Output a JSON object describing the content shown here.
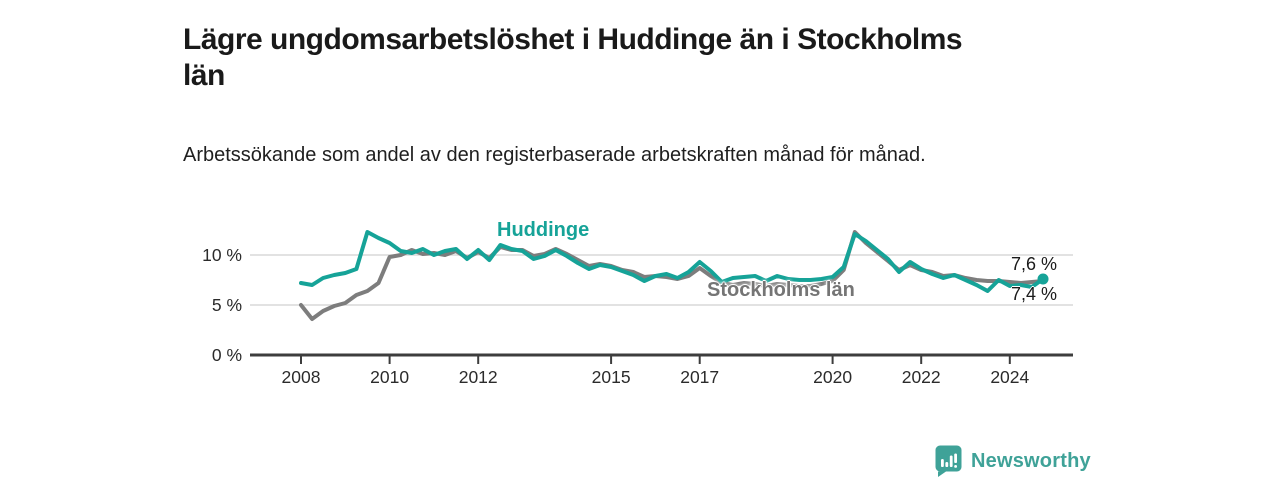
{
  "header": {
    "title": "Lägre ungdomsarbetslöshet i Huddinge än i Stockholms län",
    "subtitle": "Arbetssökande som andel av den registerbaserade arbetskraften månad för månad."
  },
  "chart_data": {
    "type": "line",
    "title": "Lägre ungdomsarbetslöshet i Huddinge än i Stockholms län",
    "xlabel": "",
    "ylabel": "",
    "unit": "%",
    "ylim": [
      0,
      13
    ],
    "xlim": [
      2006.85,
      2025.4
    ],
    "grid": "horizontal",
    "legend_position": "inline-labels-on-lines",
    "resolution": "quarterly-approximation-of-monthly",
    "x": [
      2008,
      2008.25,
      2008.5,
      2008.75,
      2009,
      2009.25,
      2009.5,
      2009.75,
      2010,
      2010.25,
      2010.5,
      2010.75,
      2011,
      2011.25,
      2011.5,
      2011.75,
      2012,
      2012.25,
      2012.5,
      2012.75,
      2013,
      2013.25,
      2013.5,
      2013.75,
      2014,
      2014.25,
      2014.5,
      2014.75,
      2015,
      2015.25,
      2015.5,
      2015.75,
      2016,
      2016.25,
      2016.5,
      2016.75,
      2017,
      2017.25,
      2017.5,
      2017.75,
      2018,
      2018.25,
      2018.5,
      2018.75,
      2019,
      2019.25,
      2019.5,
      2019.75,
      2020,
      2020.25,
      2020.5,
      2020.75,
      2021,
      2021.25,
      2021.5,
      2021.75,
      2022,
      2022.25,
      2022.5,
      2022.75,
      2023,
      2023.25,
      2023.5,
      2023.75,
      2024,
      2024.25,
      2024.5,
      2024.75
    ],
    "series": [
      {
        "name": "Huddinge",
        "color": "#16a398",
        "end_value_label": "7,6 %",
        "values": [
          7.2,
          7.0,
          7.7,
          8.0,
          8.2,
          8.6,
          12.3,
          11.7,
          11.2,
          10.4,
          10.2,
          10.6,
          10.0,
          10.4,
          10.6,
          9.6,
          10.5,
          9.5,
          11.0,
          10.6,
          10.4,
          9.6,
          9.9,
          10.5,
          9.9,
          9.2,
          8.6,
          9.0,
          8.8,
          8.4,
          8.0,
          7.4,
          7.9,
          8.1,
          7.7,
          8.3,
          9.3,
          8.4,
          7.3,
          7.7,
          7.8,
          7.9,
          7.4,
          7.9,
          7.6,
          7.5,
          7.5,
          7.6,
          7.8,
          8.8,
          12.1,
          11.4,
          10.5,
          9.6,
          8.3,
          9.3,
          8.6,
          8.1,
          7.7,
          8.0,
          7.5,
          7.0,
          6.4,
          7.5,
          6.9,
          7.0,
          6.8,
          7.6
        ]
      },
      {
        "name": "Stockholms län",
        "color": "#7d7d7d",
        "end_value_label": "7,4 %",
        "values": [
          5.0,
          3.6,
          4.4,
          4.9,
          5.2,
          6.0,
          6.4,
          7.2,
          9.8,
          10.0,
          10.5,
          10.1,
          10.2,
          10.0,
          10.4,
          9.7,
          10.3,
          9.7,
          10.8,
          10.5,
          10.5,
          9.9,
          10.1,
          10.6,
          10.1,
          9.5,
          8.9,
          9.1,
          8.9,
          8.5,
          8.3,
          7.8,
          7.9,
          7.8,
          7.6,
          7.9,
          8.7,
          7.9,
          7.2,
          7.0,
          7.2,
          7.1,
          6.9,
          7.1,
          7.0,
          6.9,
          6.9,
          7.1,
          7.4,
          8.5,
          12.3,
          11.2,
          10.3,
          9.4,
          8.5,
          9.0,
          8.5,
          8.3,
          7.9,
          8.0,
          7.7,
          7.5,
          7.4,
          7.4,
          7.3,
          7.2,
          7.3,
          7.4
        ]
      }
    ],
    "yticks": [
      {
        "value": 0,
        "label": "0 %"
      },
      {
        "value": 5,
        "label": "5 %"
      },
      {
        "value": 10,
        "label": "10 %"
      }
    ],
    "xticks": [
      {
        "year": 2008,
        "label": "2008"
      },
      {
        "year": 2010,
        "label": "2010"
      },
      {
        "year": 2012,
        "label": "2012"
      },
      {
        "year": 2015,
        "label": "2015"
      },
      {
        "year": 2017,
        "label": "2017"
      },
      {
        "year": 2020,
        "label": "2020"
      },
      {
        "year": 2022,
        "label": "2022"
      },
      {
        "year": 2024,
        "label": "2024"
      }
    ],
    "colors": {
      "gridline": "#d9d9d9",
      "axis": "#3d3d3d",
      "tick_text": "#2b2b2b",
      "value_label_text": "#1a1a1a"
    }
  },
  "branding": {
    "logo_text": "Newsworthy",
    "logo_icon": "bar-chart-speech-bubble-icon",
    "color": "#3fa298"
  }
}
